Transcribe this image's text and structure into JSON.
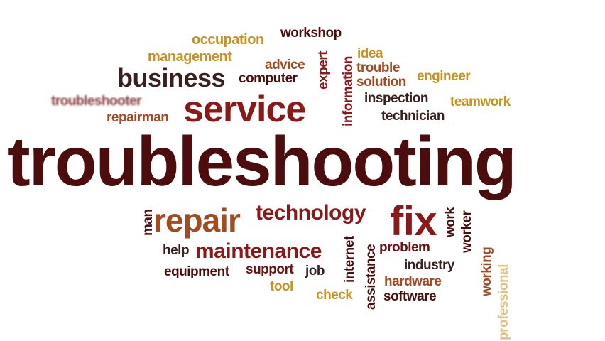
{
  "colors": {
    "dark_maroon": "#4b0d0d",
    "maroon": "#6b1414",
    "red": "#8a1a1a",
    "rust": "#a24a22",
    "gold": "#c7921f",
    "dark": "#3a1f1f"
  },
  "words": [
    {
      "id": "troubleshooting",
      "text": "troubleshooting"
    },
    {
      "id": "service",
      "text": "service"
    },
    {
      "id": "business",
      "text": "business"
    },
    {
      "id": "repair",
      "text": "repair"
    },
    {
      "id": "fix",
      "text": "fix"
    },
    {
      "id": "technology",
      "text": "technology"
    },
    {
      "id": "maintenance",
      "text": "maintenance"
    },
    {
      "id": "occupation",
      "text": "occupation"
    },
    {
      "id": "workshop",
      "text": "workshop"
    },
    {
      "id": "management",
      "text": "management"
    },
    {
      "id": "advice",
      "text": "advice"
    },
    {
      "id": "computer",
      "text": "computer"
    },
    {
      "id": "expert",
      "text": "expert"
    },
    {
      "id": "information",
      "text": "information"
    },
    {
      "id": "idea",
      "text": "idea"
    },
    {
      "id": "trouble",
      "text": "trouble"
    },
    {
      "id": "solution",
      "text": "solution"
    },
    {
      "id": "engineer",
      "text": "engineer"
    },
    {
      "id": "inspection",
      "text": "inspection"
    },
    {
      "id": "teamwork",
      "text": "teamwork"
    },
    {
      "id": "technician",
      "text": "technician"
    },
    {
      "id": "troubleshooter",
      "text": "troubleshooter"
    },
    {
      "id": "repairman",
      "text": "repairman"
    },
    {
      "id": "man",
      "text": "man"
    },
    {
      "id": "help",
      "text": "help"
    },
    {
      "id": "equipment",
      "text": "equipment"
    },
    {
      "id": "support",
      "text": "support"
    },
    {
      "id": "job",
      "text": "job"
    },
    {
      "id": "tool",
      "text": "tool"
    },
    {
      "id": "internet",
      "text": "internet"
    },
    {
      "id": "check",
      "text": "check"
    },
    {
      "id": "assistance",
      "text": "assistance"
    },
    {
      "id": "problem",
      "text": "problem"
    },
    {
      "id": "industry",
      "text": "industry"
    },
    {
      "id": "hardware",
      "text": "hardware"
    },
    {
      "id": "software",
      "text": "software"
    },
    {
      "id": "work",
      "text": "work"
    },
    {
      "id": "worker",
      "text": "worker"
    },
    {
      "id": "working",
      "text": "working"
    },
    {
      "id": "professional",
      "text": "professional"
    }
  ]
}
